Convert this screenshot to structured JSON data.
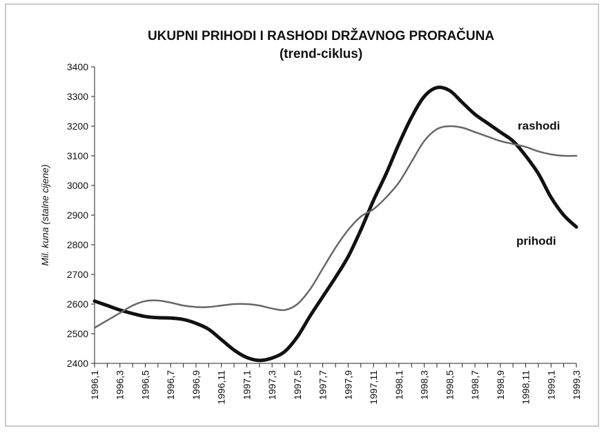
{
  "chart_data": {
    "type": "line",
    "title": "UKUPNI PRIHODI I RASHODI DRŽAVNOG PRORAČUNA",
    "subtitle": "(trend-ciklus)",
    "y_label": "Mil. kuna (stalne cijene)",
    "categories": [
      "1996,1",
      null,
      "1996,3",
      null,
      "1996,5",
      null,
      "1996,7",
      null,
      "1996,9",
      null,
      "1996,11",
      null,
      "1997,1",
      null,
      "1997,3",
      null,
      "1997,5",
      null,
      "1997,7",
      null,
      "1997,9",
      null,
      "1997,11",
      null,
      "1998,1",
      null,
      "1998,3",
      null,
      "1998,5",
      null,
      "1998,7",
      null,
      "1998,9",
      null,
      "1998,11",
      null,
      "1999,1",
      null,
      "1999,3"
    ],
    "series": [
      {
        "name": "prihodi",
        "color": "#111111",
        "width": 5,
        "values": [
          2610,
          2595,
          2580,
          2568,
          2558,
          2554,
          2553,
          2548,
          2535,
          2515,
          2480,
          2445,
          2420,
          2410,
          2418,
          2440,
          2490,
          2560,
          2625,
          2690,
          2760,
          2850,
          2950,
          3040,
          3140,
          3230,
          3300,
          3330,
          3320,
          3280,
          3240,
          3210,
          3180,
          3150,
          3100,
          3040,
          2960,
          2900,
          2860
        ]
      },
      {
        "name": "rashodi",
        "color": "#666666",
        "width": 2.5,
        "values": [
          2520,
          2545,
          2570,
          2595,
          2610,
          2612,
          2605,
          2595,
          2590,
          2590,
          2595,
          2600,
          2600,
          2595,
          2585,
          2580,
          2600,
          2650,
          2720,
          2790,
          2850,
          2895,
          2920,
          2960,
          3010,
          3080,
          3150,
          3190,
          3200,
          3195,
          3180,
          3165,
          3150,
          3140,
          3130,
          3115,
          3105,
          3100,
          3100
        ]
      }
    ],
    "ylim": [
      2400,
      3400
    ],
    "yticks": [
      2400,
      2500,
      2600,
      2700,
      2800,
      2900,
      3000,
      3100,
      3200,
      3300,
      3400
    ]
  }
}
